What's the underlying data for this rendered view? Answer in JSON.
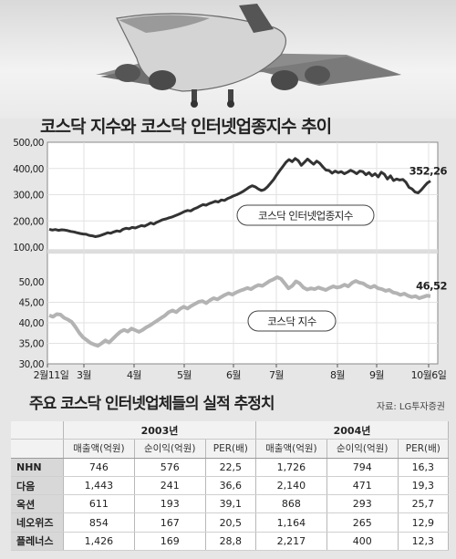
{
  "chart_data": {
    "type": "line",
    "title": "코스닥 지수와 코스닥 인터넷업종지수 추이",
    "x_tick_labels": [
      "2월11일",
      "3월",
      "4월",
      "5월",
      "6월",
      "7월",
      "8월",
      "9월",
      "10월6일"
    ],
    "upper_axis": {
      "ticks": [
        "500,00",
        "400,00",
        "300,00",
        "200,00",
        "100,00"
      ],
      "ylim": [
        100,
        500
      ]
    },
    "lower_axis": {
      "ticks": [
        "50,00",
        "45,00",
        "40,00",
        "35,00",
        "30,00"
      ],
      "ylim": [
        30,
        50
      ]
    },
    "series": [
      {
        "name": "코스닥 인터넷업종지수",
        "axis": "upper",
        "end_label": "352,26",
        "values": [
          168,
          165,
          167,
          164,
          166,
          165,
          163,
          160,
          158,
          155,
          152,
          150,
          149,
          145,
          143,
          140,
          142,
          146,
          150,
          155,
          153,
          158,
          162,
          160,
          168,
          172,
          170,
          175,
          173,
          178,
          182,
          180,
          186,
          192,
          188,
          195,
          200,
          205,
          208,
          212,
          215,
          220,
          225,
          230,
          236,
          240,
          238,
          245,
          250,
          256,
          262,
          260,
          266,
          270,
          275,
          272,
          280,
          278,
          285,
          290,
          296,
          300,
          306,
          312,
          320,
          328,
          334,
          330,
          322,
          316,
          320,
          330,
          344,
          358,
          376,
          392,
          408,
          424,
          434,
          426,
          438,
          430,
          412,
          424,
          436,
          426,
          416,
          428,
          420,
          406,
          394,
          392,
          382,
          390,
          384,
          388,
          380,
          386,
          393,
          388,
          380,
          390,
          388,
          376,
          384,
          372,
          380,
          368,
          386,
          378,
          360,
          372,
          354,
          360,
          356,
          358,
          348,
          328,
          322,
          310,
          307,
          318,
          332,
          345,
          352.26
        ]
      },
      {
        "name": "코스닥 지수",
        "axis": "lower",
        "end_label": "46,52",
        "values": [
          41.8,
          41.5,
          42.1,
          42.0,
          41.2,
          40.8,
          40.2,
          39.0,
          37.6,
          36.5,
          35.8,
          35.1,
          34.7,
          34.4,
          35.0,
          35.7,
          35.2,
          36.1,
          37.0,
          37.8,
          38.3,
          37.9,
          38.6,
          38.2,
          37.8,
          38.3,
          38.9,
          39.4,
          40.0,
          40.6,
          41.2,
          41.8,
          42.6,
          43.0,
          42.6,
          43.4,
          43.9,
          43.5,
          44.1,
          44.6,
          45.1,
          45.3,
          44.8,
          45.5,
          46.0,
          45.7,
          46.3,
          46.8,
          47.2,
          46.9,
          47.4,
          47.8,
          48.1,
          48.5,
          48.2,
          48.8,
          49.2,
          49.0,
          49.6,
          50.2,
          50.6,
          51.1,
          50.7,
          49.6,
          48.4,
          49.0,
          50.1,
          49.6,
          48.6,
          48.1,
          48.4,
          48.2,
          48.6,
          48.3,
          48.0,
          48.5,
          48.9,
          48.6,
          48.8,
          49.3,
          48.9,
          49.7,
          50.2,
          49.8,
          49.6,
          49.0,
          48.6,
          49.0,
          48.4,
          48.2,
          47.8,
          48.0,
          47.4,
          47.2,
          46.8,
          47.1,
          46.6,
          46.3,
          46.5,
          46.0,
          46.3,
          46.6,
          46.52
        ]
      }
    ],
    "break_band": [
      75,
      92
    ],
    "grid": true
  },
  "table": {
    "title": "주요 코스닥 인터넷업체들의 실적 추정치",
    "source": "자료: LG투자증권",
    "group_headers": [
      "2003년",
      "2004년"
    ],
    "column_headers": [
      "매출액(억원)",
      "순이익(억원)",
      "PER(배)",
      "매출액(억원)",
      "순이익(억원)",
      "PER(배)"
    ],
    "rows": [
      {
        "name": "NHN",
        "values": [
          "746",
          "576",
          "22,5",
          "1,726",
          "794",
          "16,3"
        ]
      },
      {
        "name": "다음",
        "values": [
          "1,443",
          "241",
          "36,6",
          "2,140",
          "471",
          "19,3"
        ]
      },
      {
        "name": "옥션",
        "values": [
          "611",
          "193",
          "39,1",
          "868",
          "293",
          "25,7"
        ]
      },
      {
        "name": "네오위즈",
        "values": [
          "854",
          "167",
          "20,5",
          "1,164",
          "265",
          "12,9"
        ]
      },
      {
        "name": "플레너스",
        "values": [
          "1,426",
          "169",
          "28,8",
          "2,217",
          "400",
          "12,3"
        ]
      }
    ]
  },
  "colors": {
    "upper_line": "#333333",
    "lower_line": "#b3b3b3",
    "plot_bg": "#ffffff",
    "break_band": "#dddddd",
    "page_bg": "#e6e6e6"
  },
  "decoration": {
    "image": "airplane-photo"
  }
}
